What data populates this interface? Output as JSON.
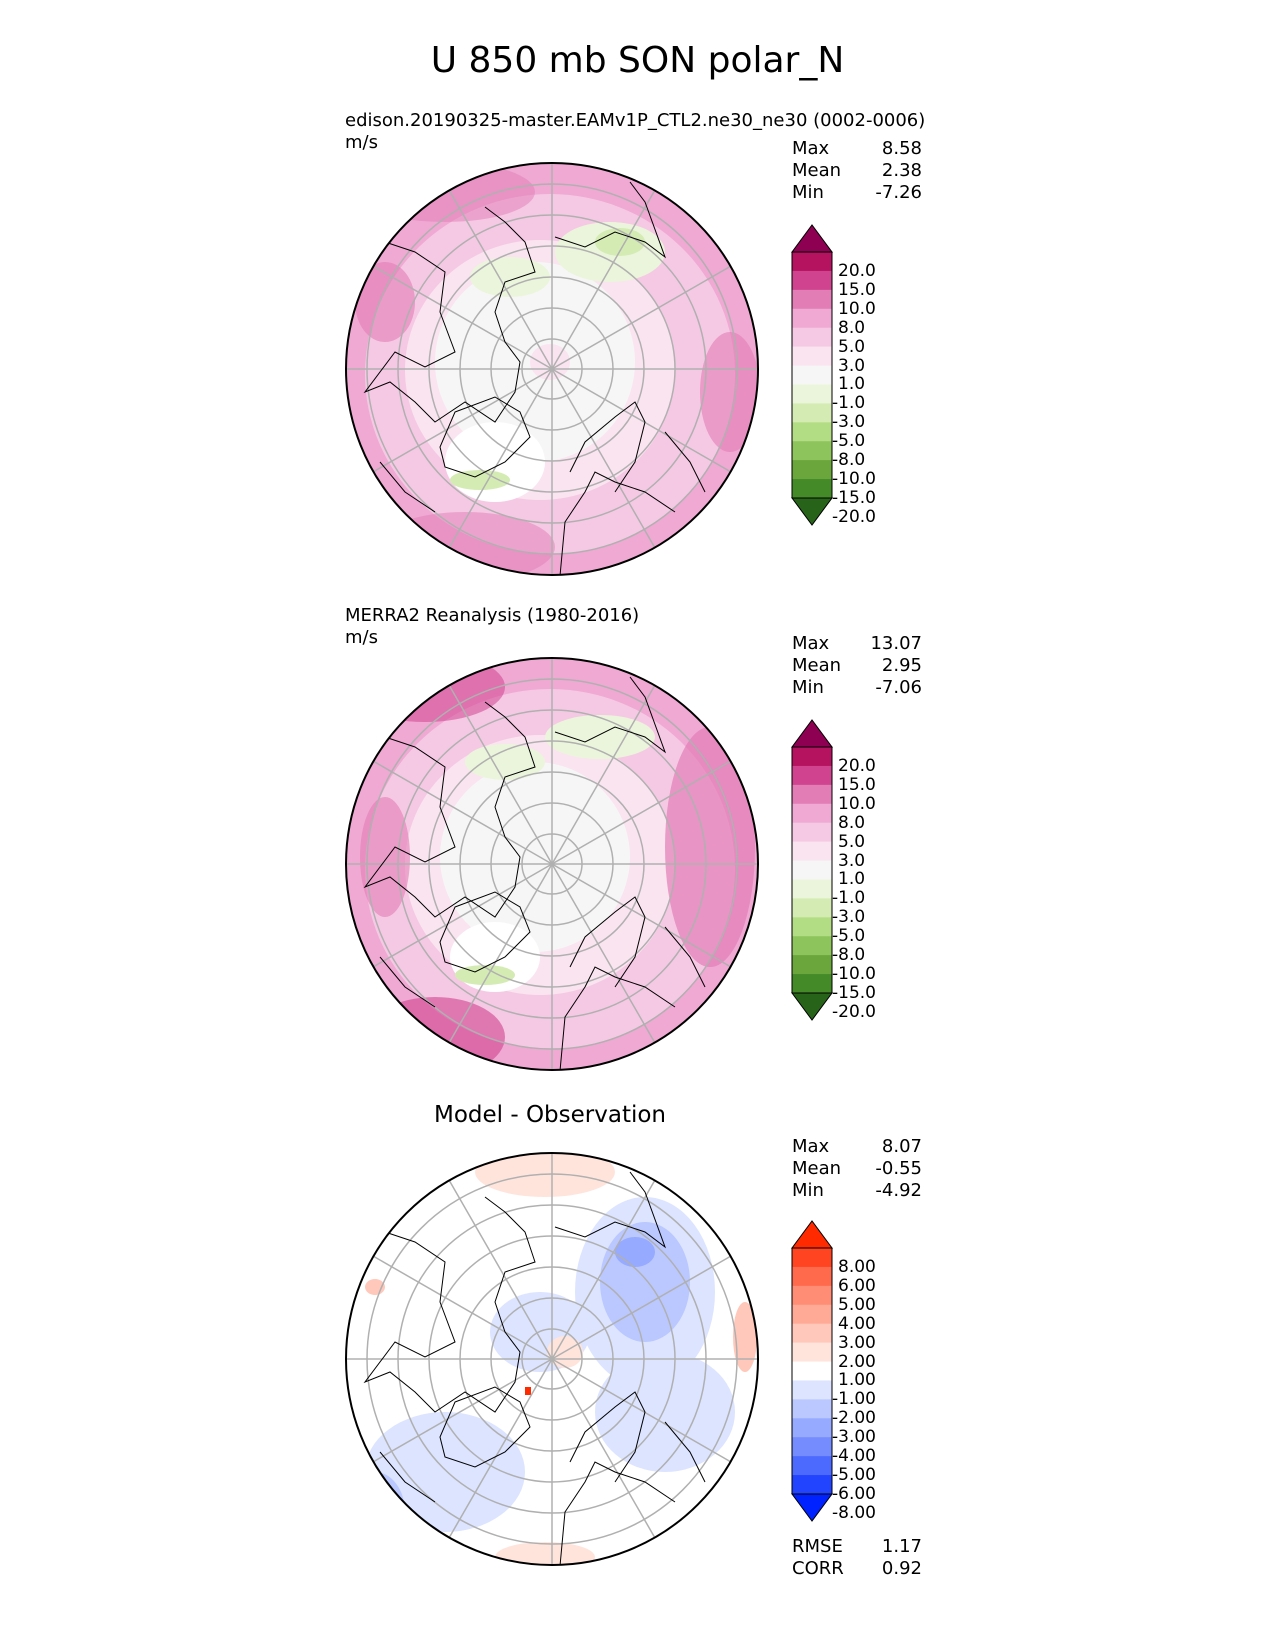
{
  "figure_title": "U 850 mb SON polar_N",
  "panels": [
    {
      "id": "test",
      "title": "edison.20190325-master.EAMv1P_CTL2.ne30_ne30 (0002-0006)",
      "units": "m/s",
      "stats": {
        "max_label": "Max",
        "max": "8.58",
        "mean_label": "Mean",
        "mean": "2.38",
        "min_label": "Min",
        "min": "-7.26"
      },
      "colorbar": {
        "levels": [
          "20.0",
          "15.0",
          "10.0",
          "8.0",
          "5.0",
          "3.0",
          "1.0",
          "-1.0",
          "-3.0",
          "-5.0",
          "-8.0",
          "-10.0",
          "-15.0",
          "-20.0"
        ],
        "colors": [
          "#8e0152",
          "#b5125f",
          "#d0438f",
          "#e27db6",
          "#efa9d3",
          "#f5c9e4",
          "#fae4f0",
          "#f6f6f6",
          "#ebf5dc",
          "#d4ecb3",
          "#b3dd84",
          "#8ec45c",
          "#6aa63c",
          "#448a28",
          "#276419"
        ]
      }
    },
    {
      "id": "reference",
      "title": "MERRA2 Reanalysis (1980-2016)",
      "units": "m/s",
      "stats": {
        "max_label": "Max",
        "max": "13.07",
        "mean_label": "Mean",
        "mean": "2.95",
        "min_label": "Min",
        "min": "-7.06"
      },
      "colorbar": {
        "levels": [
          "20.0",
          "15.0",
          "10.0",
          "8.0",
          "5.0",
          "3.0",
          "1.0",
          "-1.0",
          "-3.0",
          "-5.0",
          "-8.0",
          "-10.0",
          "-15.0",
          "-20.0"
        ],
        "colors": [
          "#8e0152",
          "#b5125f",
          "#d0438f",
          "#e27db6",
          "#efa9d3",
          "#f5c9e4",
          "#fae4f0",
          "#f6f6f6",
          "#ebf5dc",
          "#d4ecb3",
          "#b3dd84",
          "#8ec45c",
          "#6aa63c",
          "#448a28",
          "#276419"
        ]
      }
    },
    {
      "id": "difference",
      "title": "Model - Observation",
      "stats": {
        "max_label": "Max",
        "max": "8.07",
        "mean_label": "Mean",
        "mean": "-0.55",
        "min_label": "Min",
        "min": "-4.92"
      },
      "metrics": {
        "rmse_label": "RMSE",
        "rmse": "1.17",
        "corr_label": "CORR",
        "corr": "0.92"
      },
      "colorbar": {
        "levels": [
          "8.00",
          "6.00",
          "5.00",
          "4.00",
          "3.00",
          "2.00",
          "1.00",
          "-1.00",
          "-2.00",
          "-3.00",
          "-4.00",
          "-5.00",
          "-6.00",
          "-8.00"
        ],
        "colors": [
          "#ff2a00",
          "#ff4422",
          "#ff6a4d",
          "#ff8c75",
          "#ffaa96",
          "#ffc8ba",
          "#ffe4dc",
          "#ffffff",
          "#dce4ff",
          "#bac8ff",
          "#96aaff",
          "#758cff",
          "#4d6aff",
          "#2244ff",
          "#0022ff"
        ]
      }
    }
  ]
}
